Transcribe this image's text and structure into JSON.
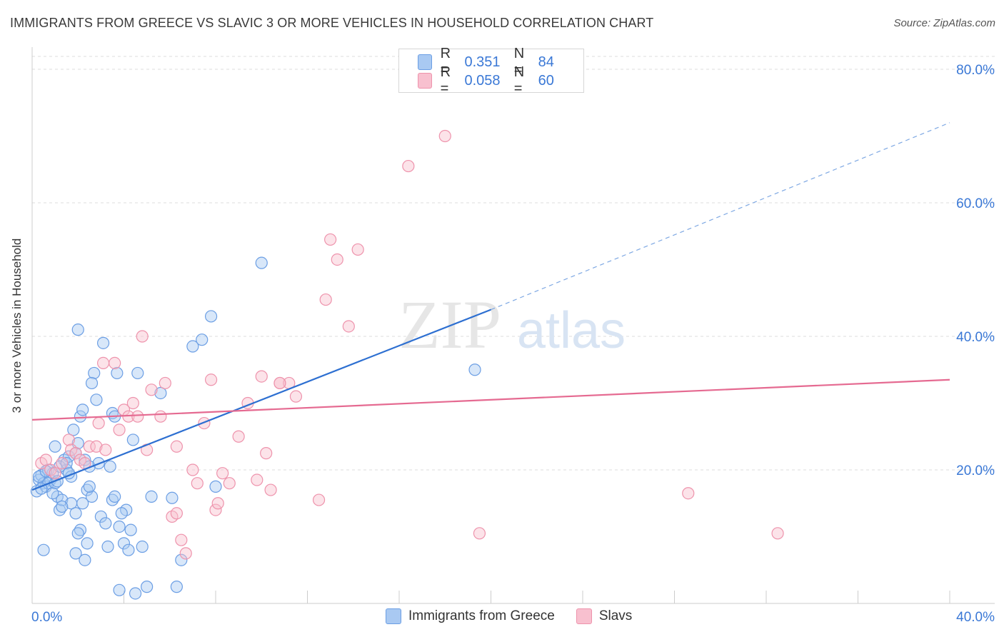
{
  "header": {
    "title": "IMMIGRANTS FROM GREECE VS SLAVIC 3 OR MORE VEHICLES IN HOUSEHOLD CORRELATION CHART",
    "source": "Source: ZipAtlas.com"
  },
  "watermark": {
    "zip": "ZIP",
    "atlas": "atlas"
  },
  "legend": {
    "r_label": "R =",
    "n_label": "N =",
    "series": [
      {
        "name": "Immigrants from Greece",
        "r": "0.351",
        "n": "84",
        "fill": "#a9c9f2",
        "stroke": "#6b9ee4"
      },
      {
        "name": "Slavs",
        "r": "0.058",
        "n": "60",
        "fill": "#f8c0cf",
        "stroke": "#ee93ac"
      }
    ]
  },
  "chart_data": {
    "type": "scatter",
    "title": "IMMIGRANTS FROM GREECE VS SLAVIC 3 OR MORE VEHICLES IN HOUSEHOLD CORRELATION CHART",
    "xlabel": "",
    "ylabel": "3 or more Vehicles in Household",
    "xlim": [
      0,
      40
    ],
    "ylim": [
      0,
      80
    ],
    "x_ticks": [
      "0.0%",
      "40.0%"
    ],
    "y_ticks": [
      "20.0%",
      "40.0%",
      "60.0%",
      "80.0%"
    ],
    "y_tick_values": [
      20,
      40,
      60,
      80
    ],
    "x_minor_ticks": [
      0,
      4,
      8,
      12,
      16,
      20,
      24,
      28,
      32,
      36,
      40
    ],
    "grid": true,
    "series": [
      {
        "name": "Immigrants from Greece",
        "color": "#6b9ee4",
        "trend": {
          "x": [
            0,
            20
          ],
          "y": [
            17.0,
            44.0
          ],
          "dashed_to": [
            40,
            72.0
          ],
          "color": "#2d6fd1"
        },
        "points": [
          [
            0.2,
            16.8
          ],
          [
            0.3,
            18.5
          ],
          [
            0.4,
            19.2
          ],
          [
            0.5,
            18.0
          ],
          [
            0.6,
            17.5
          ],
          [
            0.7,
            20.0
          ],
          [
            0.8,
            18.5
          ],
          [
            0.9,
            19.5
          ],
          [
            1.0,
            23.5
          ],
          [
            1.1,
            16.0
          ],
          [
            1.2,
            14.0
          ],
          [
            1.3,
            15.5
          ],
          [
            1.4,
            21.5
          ],
          [
            1.5,
            20.0
          ],
          [
            1.6,
            22.0
          ],
          [
            1.7,
            19.0
          ],
          [
            1.8,
            26.0
          ],
          [
            1.9,
            22.5
          ],
          [
            2.0,
            24.0
          ],
          [
            2.1,
            28.0
          ],
          [
            2.2,
            29.0
          ],
          [
            2.3,
            21.5
          ],
          [
            2.4,
            17.0
          ],
          [
            2.5,
            20.5
          ],
          [
            2.6,
            16.0
          ],
          [
            1.7,
            15.0
          ],
          [
            1.9,
            13.5
          ],
          [
            2.1,
            11.0
          ],
          [
            2.0,
            10.5
          ],
          [
            1.9,
            7.5
          ],
          [
            2.3,
            6.5
          ],
          [
            2.4,
            9.0
          ],
          [
            2.0,
            41.0
          ],
          [
            2.7,
            34.5
          ],
          [
            2.8,
            30.5
          ],
          [
            2.6,
            33.0
          ],
          [
            3.0,
            13.0
          ],
          [
            3.2,
            12.0
          ],
          [
            3.3,
            8.5
          ],
          [
            3.5,
            15.5
          ],
          [
            3.6,
            16.0
          ],
          [
            3.8,
            11.5
          ],
          [
            4.0,
            9.0
          ],
          [
            4.1,
            14.0
          ],
          [
            4.2,
            8.0
          ],
          [
            4.3,
            11.0
          ],
          [
            4.4,
            24.5
          ],
          [
            4.6,
            34.5
          ],
          [
            3.7,
            34.5
          ],
          [
            3.5,
            28.5
          ],
          [
            3.4,
            20.5
          ],
          [
            3.8,
            2.0
          ],
          [
            4.5,
            1.5
          ],
          [
            5.0,
            2.5
          ],
          [
            5.2,
            16.0
          ],
          [
            5.6,
            31.5
          ],
          [
            6.1,
            15.8
          ],
          [
            6.3,
            2.5
          ],
          [
            6.5,
            6.5
          ],
          [
            7.0,
            38.5
          ],
          [
            7.4,
            39.5
          ],
          [
            7.8,
            43.0
          ],
          [
            8.0,
            17.5
          ],
          [
            10.0,
            51.0
          ],
          [
            0.5,
            8.0
          ],
          [
            0.7,
            18.0
          ],
          [
            0.3,
            19.0
          ],
          [
            0.4,
            17.2
          ],
          [
            1.0,
            18.0
          ],
          [
            1.2,
            20.5
          ],
          [
            1.5,
            21.0
          ],
          [
            1.6,
            19.5
          ],
          [
            2.5,
            17.5
          ],
          [
            1.3,
            14.5
          ],
          [
            2.9,
            21.0
          ],
          [
            3.1,
            39.0
          ],
          [
            3.6,
            28.0
          ],
          [
            19.3,
            35.0
          ],
          [
            0.6,
            19.8
          ],
          [
            1.1,
            18.3
          ],
          [
            2.2,
            15.0
          ],
          [
            0.9,
            16.5
          ],
          [
            3.9,
            13.5
          ],
          [
            4.8,
            8.5
          ]
        ]
      },
      {
        "name": "Slavs",
        "color": "#ee93ac",
        "trend": {
          "x": [
            0,
            40
          ],
          "y": [
            27.5,
            33.5
          ],
          "color": "#e56a91"
        },
        "points": [
          [
            0.4,
            21.0
          ],
          [
            0.6,
            21.5
          ],
          [
            0.8,
            20.0
          ],
          [
            1.0,
            19.5
          ],
          [
            1.3,
            21.0
          ],
          [
            1.6,
            24.5
          ],
          [
            1.7,
            23.0
          ],
          [
            1.9,
            22.5
          ],
          [
            2.1,
            21.5
          ],
          [
            2.3,
            21.0
          ],
          [
            2.5,
            23.5
          ],
          [
            2.8,
            23.5
          ],
          [
            2.9,
            27.0
          ],
          [
            3.1,
            36.0
          ],
          [
            3.2,
            23.0
          ],
          [
            3.6,
            36.0
          ],
          [
            3.8,
            26.0
          ],
          [
            4.0,
            29.0
          ],
          [
            4.2,
            28.0
          ],
          [
            4.4,
            30.0
          ],
          [
            4.6,
            28.0
          ],
          [
            4.8,
            40.0
          ],
          [
            5.0,
            23.0
          ],
          [
            5.2,
            32.0
          ],
          [
            5.6,
            28.0
          ],
          [
            5.8,
            33.0
          ],
          [
            6.1,
            13.0
          ],
          [
            6.3,
            23.5
          ],
          [
            6.5,
            9.5
          ],
          [
            6.7,
            7.5
          ],
          [
            7.0,
            20.0
          ],
          [
            7.2,
            18.0
          ],
          [
            7.5,
            27.0
          ],
          [
            7.8,
            33.5
          ],
          [
            8.0,
            14.0
          ],
          [
            8.1,
            15.0
          ],
          [
            8.3,
            19.5
          ],
          [
            8.6,
            18.0
          ],
          [
            9.0,
            25.0
          ],
          [
            9.4,
            30.0
          ],
          [
            9.8,
            18.5
          ],
          [
            10.0,
            34.0
          ],
          [
            10.2,
            22.5
          ],
          [
            10.4,
            17.0
          ],
          [
            10.8,
            33.0
          ],
          [
            11.2,
            33.0
          ],
          [
            11.5,
            31.0
          ],
          [
            12.5,
            15.5
          ],
          [
            13.0,
            54.5
          ],
          [
            13.3,
            51.5
          ],
          [
            13.8,
            41.5
          ],
          [
            14.2,
            53.0
          ],
          [
            10.8,
            33.0
          ],
          [
            16.4,
            65.5
          ],
          [
            18.0,
            70.0
          ],
          [
            19.5,
            10.5
          ],
          [
            28.6,
            16.5
          ],
          [
            32.5,
            10.5
          ],
          [
            12.8,
            45.5
          ],
          [
            6.3,
            13.5
          ]
        ]
      }
    ]
  }
}
